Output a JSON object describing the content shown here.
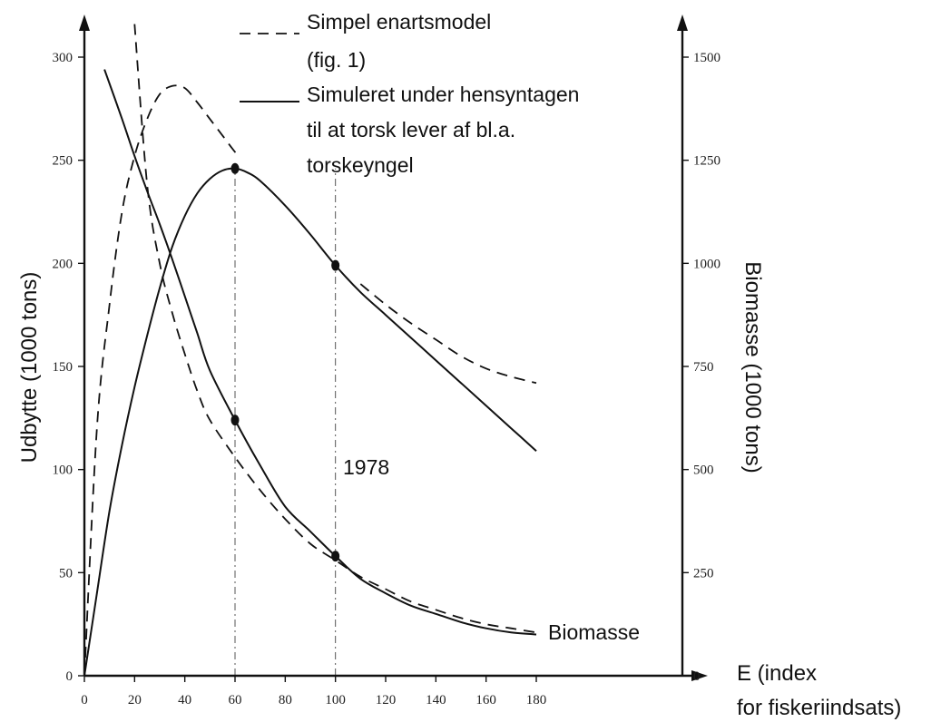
{
  "chart_data": {
    "type": "line",
    "title": "",
    "xlabel_line1": "E (index",
    "xlabel_line2": "for fiskeriindsats)",
    "ylabel_left": "Udbytte (1000 tons)",
    "ylabel_right": "Biomasse (1000 tons)",
    "xlim": [
      0,
      180
    ],
    "ylim_left": [
      0,
      300
    ],
    "ylim_right": [
      0,
      1500
    ],
    "x_ticks": [
      0,
      20,
      40,
      60,
      80,
      100,
      120,
      140,
      160,
      180
    ],
    "y_left_ticks": [
      0,
      50,
      100,
      150,
      200,
      250,
      300
    ],
    "y_right_ticks": [
      0,
      250,
      500,
      750,
      1000,
      1250,
      1500
    ],
    "legend": {
      "dashed_line1": "Simpel enartsmodel",
      "dashed_line2": "(fig. 1)",
      "solid_line1": "Simuleret under hensyntagen",
      "solid_line2": "til at torsk lever af bl.a.",
      "solid_line3": "torskeyngel"
    },
    "annotations": {
      "year_label": "1978",
      "biomass_label": "Biomasse"
    },
    "series": [
      {
        "style": "dashed",
        "axis": "left",
        "role": "yield",
        "x": [
          0,
          5,
          10,
          15,
          20,
          25,
          30,
          35,
          40,
          45,
          50,
          55,
          60,
          62
        ],
        "y": [
          0,
          120,
          180,
          225,
          252,
          270,
          282,
          286,
          285,
          278,
          270,
          262,
          254,
          252
        ]
      },
      {
        "style": "dashed",
        "axis": "left",
        "role": "yield",
        "x": [
          110,
          120,
          130,
          140,
          150,
          160,
          170,
          180
        ],
        "y": [
          190,
          180,
          171,
          163,
          155,
          149,
          145,
          142
        ]
      },
      {
        "style": "solid",
        "axis": "left",
        "role": "yield",
        "x": [
          0,
          5,
          10,
          15,
          20,
          25,
          30,
          35,
          40,
          45,
          50,
          55,
          60,
          65,
          70,
          80,
          90,
          100,
          110,
          120,
          130,
          140,
          150,
          160,
          170,
          180
        ],
        "y": [
          0,
          40,
          80,
          112,
          140,
          165,
          188,
          208,
          223,
          234,
          241,
          245,
          246,
          244,
          240,
          228,
          214,
          199,
          186,
          175,
          164,
          153,
          142,
          131,
          120,
          109
        ]
      },
      {
        "style": "dashed",
        "axis": "right",
        "role": "biomass",
        "x": [
          20,
          25,
          30,
          35,
          40,
          45,
          50,
          60,
          70,
          80,
          90,
          100,
          110,
          120,
          130,
          140,
          150,
          160,
          170,
          180
        ],
        "y": [
          1580,
          1190,
          1000,
          880,
          780,
          690,
          620,
          530,
          450,
          380,
          320,
          280,
          240,
          210,
          180,
          160,
          140,
          125,
          115,
          105
        ]
      },
      {
        "style": "solid",
        "axis": "right",
        "role": "biomass",
        "x": [
          8,
          15,
          20,
          25,
          30,
          35,
          40,
          45,
          50,
          60,
          70,
          80,
          90,
          100,
          110,
          120,
          130,
          140,
          150,
          160,
          170,
          180
        ],
        "y": [
          1470,
          1350,
          1260,
          1175,
          1095,
          1010,
          920,
          830,
          740,
          620,
          510,
          410,
          350,
          290,
          235,
          200,
          170,
          150,
          130,
          115,
          105,
          100
        ]
      }
    ],
    "markers": [
      {
        "axis": "left",
        "x": 60,
        "y": 246
      },
      {
        "axis": "left",
        "x": 100,
        "y": 199
      },
      {
        "axis": "right",
        "x": 60,
        "y": 620
      },
      {
        "axis": "right",
        "x": 100,
        "y": 290
      }
    ],
    "guides_x": [
      60,
      100
    ]
  }
}
